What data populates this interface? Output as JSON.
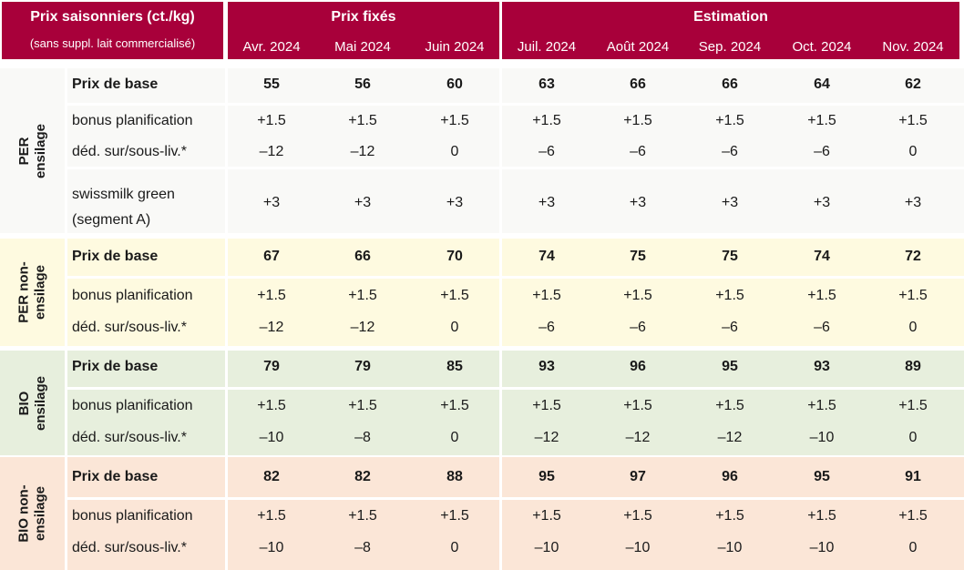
{
  "header": {
    "title": "Prix saisonniers (ct./kg)",
    "subtitle": "(sans suppl. lait commercialisé)",
    "fixed_label": "Prix fixés",
    "estimate_label": "Estimation",
    "months": [
      "Avr. 2024",
      "Mai 2024",
      "Juin 2024",
      "Juil. 2024",
      "Août 2024",
      "Sep. 2024",
      "Oct. 2024",
      "Nov. 2024"
    ]
  },
  "colors": {
    "header_bg": "#a8003a",
    "per_bg": "#f9f9f7",
    "per_non_bg": "#fefae0",
    "bio_bg": "#e7efdd",
    "bio_non_bg": "#fbe6d7"
  },
  "groups": [
    {
      "label": "PER ensilage",
      "rows": [
        {
          "label": "Prix de base",
          "bold": true,
          "values": [
            "55",
            "56",
            "60",
            "63",
            "66",
            "66",
            "64",
            "62"
          ]
        },
        {
          "label": "bonus planification",
          "bold": false,
          "values": [
            "+1.5",
            "+1.5",
            "+1.5",
            "+1.5",
            "+1.5",
            "+1.5",
            "+1.5",
            "+1.5"
          ]
        },
        {
          "label": "déd. sur/sous-liv.*",
          "bold": false,
          "values": [
            "–12",
            "–12",
            "0",
            "–6",
            "–6",
            "–6",
            "–6",
            "0"
          ]
        },
        {
          "label": "swissmilk green (segment A)",
          "bold": false,
          "label_lines": [
            "swissmilk green",
            "(segment A)"
          ],
          "values": [
            "+3",
            "+3",
            "+3",
            "+3",
            "+3",
            "+3",
            "+3",
            "+3"
          ]
        }
      ]
    },
    {
      "label": "PER non-ensilage",
      "rows": [
        {
          "label": "Prix de base",
          "bold": true,
          "values": [
            "67",
            "66",
            "70",
            "74",
            "75",
            "75",
            "74",
            "72"
          ]
        },
        {
          "label": "bonus planification",
          "bold": false,
          "values": [
            "+1.5",
            "+1.5",
            "+1.5",
            "+1.5",
            "+1.5",
            "+1.5",
            "+1.5",
            "+1.5"
          ]
        },
        {
          "label": "déd. sur/sous-liv.*",
          "bold": false,
          "values": [
            "–12",
            "–12",
            "0",
            "–6",
            "–6",
            "–6",
            "–6",
            "0"
          ]
        }
      ]
    },
    {
      "label": "BIO ensilage",
      "rows": [
        {
          "label": "Prix de base",
          "bold": true,
          "values": [
            "79",
            "79",
            "85",
            "93",
            "96",
            "95",
            "93",
            "89"
          ]
        },
        {
          "label": "bonus planification",
          "bold": false,
          "values": [
            "+1.5",
            "+1.5",
            "+1.5",
            "+1.5",
            "+1.5",
            "+1.5",
            "+1.5",
            "+1.5"
          ]
        },
        {
          "label": "déd. sur/sous-liv.*",
          "bold": false,
          "values": [
            "–10",
            "–8",
            "0",
            "–12",
            "–12",
            "–12",
            "–10",
            "0"
          ]
        }
      ]
    },
    {
      "label": "BIO non-ensilage",
      "rows": [
        {
          "label": "Prix de base",
          "bold": true,
          "values": [
            "82",
            "82",
            "88",
            "95",
            "97",
            "96",
            "95",
            "91"
          ]
        },
        {
          "label": "bonus planification",
          "bold": false,
          "values": [
            "+1.5",
            "+1.5",
            "+1.5",
            "+1.5",
            "+1.5",
            "+1.5",
            "+1.5",
            "+1.5"
          ]
        },
        {
          "label": "déd. sur/sous-liv.*",
          "bold": false,
          "values": [
            "–10",
            "–8",
            "0",
            "–10",
            "–10",
            "–10",
            "–10",
            "0"
          ]
        }
      ]
    }
  ]
}
